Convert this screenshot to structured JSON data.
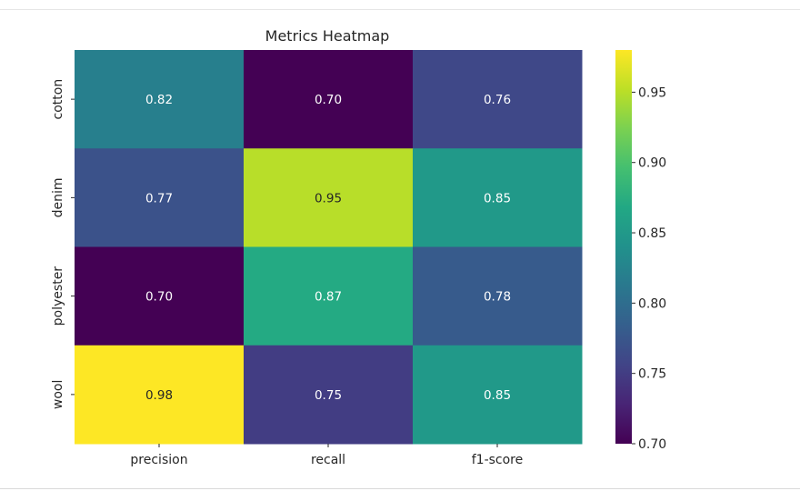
{
  "chart_data": {
    "type": "heatmap",
    "title": "Metrics Heatmap",
    "xlabel": "",
    "ylabel": "",
    "x_categories": [
      "precision",
      "recall",
      "f1-score"
    ],
    "y_categories": [
      "cotton",
      "denim",
      "polyester",
      "wool"
    ],
    "values": [
      [
        0.82,
        0.7,
        0.76
      ],
      [
        0.77,
        0.95,
        0.85
      ],
      [
        0.7,
        0.87,
        0.78
      ],
      [
        0.98,
        0.75,
        0.85
      ]
    ],
    "value_format": "0.00",
    "colormap": "viridis",
    "vmin": 0.7,
    "vmax": 0.98,
    "colorbar_ticks": [
      0.7,
      0.75,
      0.8,
      0.85,
      0.9,
      0.95
    ],
    "colorbar_tick_labels": [
      "0.70",
      "0.75",
      "0.80",
      "0.85",
      "0.90",
      "0.95"
    ],
    "colorbar_placement": "right",
    "grid": false,
    "annotation_colors": {
      "dark_text": "#262626",
      "light_text": "#ffffff"
    }
  }
}
